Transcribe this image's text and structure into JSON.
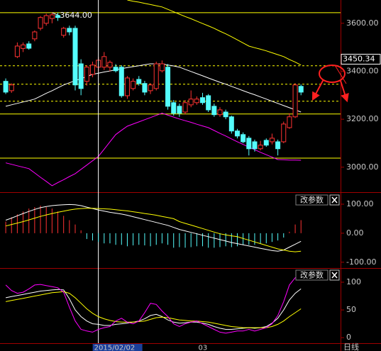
{
  "chart_data": [
    {
      "type": "candlestick",
      "period": "日线",
      "categories": [
        null,
        null,
        null,
        null,
        null,
        null,
        null,
        null,
        null,
        null,
        null,
        null,
        null,
        null,
        null,
        null,
        "2015/02/02",
        null,
        null,
        null,
        null,
        null,
        null,
        null,
        null,
        null,
        null,
        null,
        null,
        null,
        null,
        null,
        null,
        null,
        "03",
        null,
        null,
        null,
        null,
        null,
        null,
        null,
        null,
        null,
        null,
        null,
        null,
        null,
        null,
        null,
        null,
        null
      ],
      "ohlc": [
        [
          3358,
          3370,
          3305,
          3313
        ],
        [
          3319,
          3350,
          3310,
          3343
        ],
        [
          3461,
          3520,
          3455,
          3505
        ],
        [
          3495,
          3520,
          3480,
          3510
        ],
        [
          3514,
          3525,
          3490,
          3496
        ],
        [
          3535,
          3570,
          3525,
          3564
        ],
        [
          3579,
          3630,
          3570,
          3624
        ],
        [
          3600,
          3640,
          3590,
          3632
        ],
        [
          3620,
          3644,
          3600,
          3635
        ],
        [
          3632,
          3644,
          3610,
          3624
        ],
        [
          3550,
          3585,
          3540,
          3579
        ],
        [
          3579,
          3590,
          3550,
          3564
        ],
        [
          3579,
          3590,
          3320,
          3343
        ],
        [
          3431,
          3450,
          3300,
          3328
        ],
        [
          3358,
          3425,
          3340,
          3417
        ],
        [
          3387,
          3440,
          3375,
          3426
        ],
        [
          3417,
          3460,
          3400,
          3446
        ],
        [
          3417,
          3480,
          3405,
          3461
        ],
        [
          3417,
          3445,
          3400,
          3437
        ],
        [
          3417,
          3430,
          3395,
          3402
        ],
        [
          3417,
          3425,
          3290,
          3298
        ],
        [
          3298,
          3380,
          3285,
          3372
        ],
        [
          3328,
          3370,
          3320,
          3358
        ],
        [
          3366,
          3380,
          3340,
          3349
        ],
        [
          3349,
          3360,
          3300,
          3313
        ],
        [
          3319,
          3350,
          3305,
          3343
        ],
        [
          3328,
          3440,
          3320,
          3431
        ],
        [
          3402,
          3445,
          3395,
          3431
        ],
        [
          3417,
          3430,
          3240,
          3254
        ],
        [
          3269,
          3280,
          3215,
          3225
        ],
        [
          3254,
          3265,
          3210,
          3225
        ],
        [
          3230,
          3280,
          3220,
          3269
        ],
        [
          3260,
          3320,
          3250,
          3284
        ],
        [
          3269,
          3295,
          3260,
          3284
        ],
        [
          3290,
          3310,
          3260,
          3269
        ],
        [
          3298,
          3305,
          3230,
          3239
        ],
        [
          3254,
          3265,
          3210,
          3219
        ],
        [
          3219,
          3250,
          3210,
          3239
        ],
        [
          3230,
          3240,
          3200,
          3210
        ],
        [
          3210,
          3215,
          3140,
          3151
        ],
        [
          3151,
          3160,
          3120,
          3130
        ],
        [
          3136,
          3145,
          3100,
          3106
        ],
        [
          3121,
          3130,
          3049,
          3077
        ],
        [
          3106,
          3115,
          3065,
          3077
        ],
        [
          3077,
          3110,
          3070,
          3092
        ],
        [
          3112,
          3120,
          3085,
          3092
        ],
        [
          3106,
          3140,
          3095,
          3121
        ],
        [
          3106,
          3115,
          3049,
          3077
        ],
        [
          3106,
          3190,
          3100,
          3180
        ],
        [
          3165,
          3225,
          3160,
          3210
        ],
        [
          3210,
          3350,
          3205,
          3343
        ],
        [
          3337,
          3345,
          3300,
          3313
        ]
      ],
      "up_color": "#ff3232",
      "down_color": "#54fcfc",
      "lines": [
        {
          "color": "#ffffff",
          "values": [
            3254,
            3260,
            3266,
            3272,
            3278,
            3284,
            3296,
            3308,
            3319,
            3331,
            3343,
            3352,
            3361,
            3369,
            3378,
            3387,
            3392,
            3397,
            3401,
            3406,
            3411,
            3415,
            3419,
            3423,
            3427,
            3431,
            3431,
            3431,
            3426,
            3422,
            3417,
            3408,
            3399,
            3390,
            3381,
            3372,
            3363,
            3354,
            3346,
            3337,
            3328,
            3319,
            3310,
            3302,
            3293,
            3284,
            3275,
            3266,
            3257,
            3248,
            3239,
            3230
          ]
        },
        {
          "color": "#ffff00",
          "values": [
            null,
            null,
            null,
            null,
            null,
            null,
            null,
            null,
            null,
            null,
            null,
            null,
            null,
            null,
            null,
            null,
            null,
            null,
            null,
            null,
            null,
            3697,
            3692,
            3688,
            3683,
            3678,
            3673,
            3668,
            3658,
            3648,
            3638,
            3628,
            3619,
            3609,
            3599,
            3589,
            3579,
            3567,
            3556,
            3544,
            3531,
            3518,
            3505,
            3498,
            3492,
            3485,
            3477,
            3469,
            3461,
            3449,
            3438,
            3426
          ]
        },
        {
          "color": "#ff00ff",
          "values": [
            3018,
            3012,
            3006,
            3000,
            2994,
            2976,
            2958,
            2941,
            2923,
            2936,
            2948,
            2961,
            2973,
            2991,
            3009,
            3027,
            3045,
            3075,
            3106,
            3136,
            3154,
            3171,
            3180,
            3189,
            3198,
            3207,
            3216,
            3225,
            3217,
            3209,
            3201,
            3194,
            3187,
            3179,
            3172,
            3165,
            3153,
            3141,
            3130,
            3118,
            3106,
            3095,
            3084,
            3073,
            3062,
            3052,
            3042,
            3032,
            3031,
            3030,
            3030,
            3029
          ]
        }
      ],
      "high": {
        "value": 3644,
        "label": "3644.00"
      },
      "levels": [
        3222,
        3038
      ],
      "dashed_levels": [
        3423,
        3346,
        3275
      ],
      "level_color": "#ffff00",
      "cursor_price": 3450.34,
      "ylim": [
        2893,
        3697
      ],
      "yticks": [
        {
          "value": 3600,
          "label": "3600.00"
        },
        {
          "value": 3400,
          "label": "3400.00"
        },
        {
          "value": 3200,
          "label": "3200.00"
        },
        {
          "value": 3000,
          "label": "3000.00"
        }
      ]
    },
    {
      "type": "indicator",
      "button": "改参数",
      "bars": [
        40,
        55,
        65,
        75,
        85,
        90,
        95,
        90,
        85,
        75,
        60,
        45,
        30,
        10,
        -20,
        -25,
        -30,
        -35,
        -35,
        -40,
        -40,
        -45,
        -42,
        -40,
        -42,
        -45,
        -40,
        -35,
        -40,
        -50,
        -48,
        -50,
        -48,
        -45,
        -45,
        -50,
        -50,
        -48,
        -45,
        -48,
        -45,
        -40,
        -40,
        -40,
        -35,
        -35,
        -30,
        -25,
        -15,
        5,
        30,
        45
      ],
      "pos_color": "#ff3232",
      "neg_color": "#54fcfc",
      "lines": [
        {
          "color": "#ffffff",
          "values": [
            45,
            52,
            60,
            68,
            75,
            82,
            88,
            92,
            95,
            97,
            98,
            99,
            98,
            95,
            90,
            85,
            80,
            76,
            72,
            69,
            66,
            62,
            57,
            52,
            47,
            42,
            37,
            32,
            27,
            20,
            13,
            8,
            3,
            -2,
            -7,
            -12,
            -17,
            -22,
            -27,
            -32,
            -36,
            -40,
            -44,
            -48,
            -52,
            -56,
            -60,
            -62,
            -58,
            -48,
            -38,
            -28
          ]
        },
        {
          "color": "#ffff00",
          "values": [
            25,
            30,
            35,
            40,
            46,
            52,
            58,
            63,
            68,
            72,
            76,
            80,
            83,
            85,
            86,
            86,
            85,
            84,
            83,
            81,
            79,
            77,
            74,
            71,
            68,
            65,
            62,
            58,
            54,
            50,
            40,
            34,
            28,
            22,
            16,
            10,
            4,
            -2,
            -6,
            -9,
            -12,
            -18,
            -24,
            -30,
            -36,
            -42,
            -48,
            -54,
            -58,
            -62,
            -64,
            -62
          ]
        }
      ],
      "ylim": [
        -120,
        139
      ],
      "yticks": [
        {
          "value": 100,
          "label": "100.00"
        },
        {
          "value": 0,
          "label": "0.00"
        },
        {
          "value": -100,
          "label": "-100.00"
        }
      ]
    },
    {
      "type": "indicator",
      "button": "改参数",
      "lines": [
        {
          "color": "#ffffff",
          "values": [
            72,
            74,
            76,
            78,
            80,
            82,
            84,
            85,
            86,
            87,
            86,
            70,
            50,
            38,
            30,
            25,
            24,
            22,
            22,
            24,
            25,
            26,
            28,
            30,
            34,
            40,
            42,
            38,
            32,
            28,
            26,
            27,
            28,
            28,
            26,
            24,
            20,
            17,
            15,
            15,
            16,
            17,
            18,
            17,
            18,
            20,
            26,
            35,
            50,
            68,
            80,
            88
          ]
        },
        {
          "color": "#ffff00",
          "values": [
            65,
            67,
            69,
            71,
            73,
            75,
            77,
            79,
            81,
            82,
            83,
            80,
            72,
            62,
            52,
            44,
            38,
            34,
            31,
            29,
            28,
            28,
            28,
            29,
            30,
            33,
            36,
            37,
            36,
            34,
            32,
            31,
            30,
            30,
            29,
            28,
            26,
            24,
            22,
            20,
            19,
            18,
            18,
            18,
            18,
            18,
            20,
            24,
            30,
            38,
            45,
            52
          ]
        },
        {
          "color": "#ff00ff",
          "values": [
            95,
            85,
            80,
            82,
            88,
            95,
            96,
            94,
            92,
            90,
            82,
            55,
            30,
            15,
            12,
            10,
            15,
            18,
            20,
            30,
            35,
            28,
            25,
            30,
            45,
            62,
            60,
            48,
            38,
            25,
            20,
            25,
            28,
            30,
            25,
            20,
            15,
            10,
            8,
            10,
            12,
            12,
            15,
            12,
            15,
            18,
            25,
            40,
            65,
            95,
            108,
            110
          ]
        }
      ],
      "ylim": [
        -10,
        123
      ],
      "yticks": [
        100,
        50,
        0
      ]
    }
  ]
}
